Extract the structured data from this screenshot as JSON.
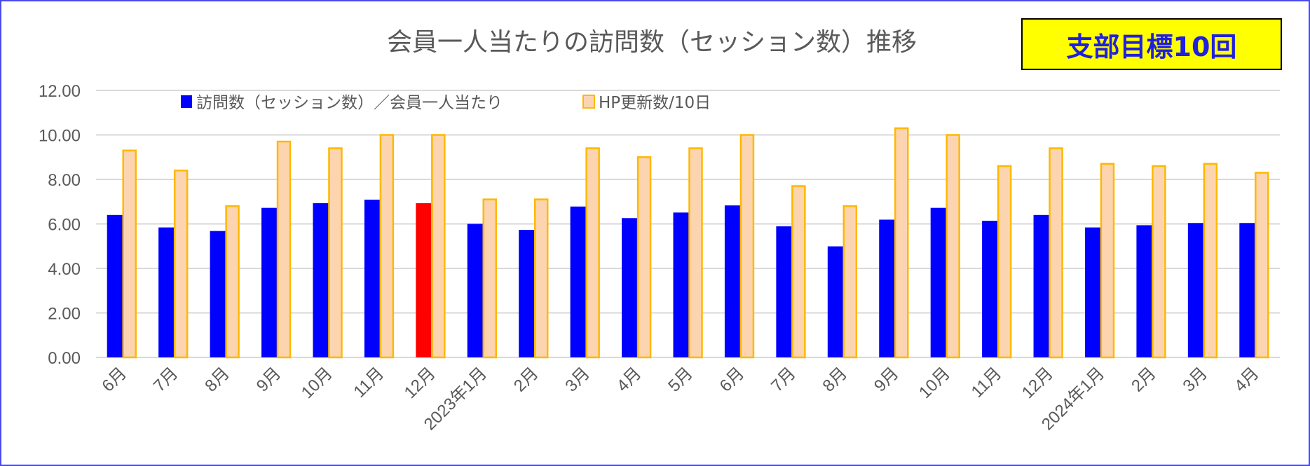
{
  "chart_data": {
    "type": "bar",
    "title": "会員一人当たりの訪問数（セッション数）推移",
    "annotation": "支部目標10回",
    "categories": [
      "6月",
      "7月",
      "8月",
      "9月",
      "10月",
      "11月",
      "12月",
      "2023年1月",
      "2月",
      "3月",
      "4月",
      "5月",
      "6月",
      "7月",
      "8月",
      "9月",
      "10月",
      "11月",
      "12月",
      "2024年1月",
      "2月",
      "3月",
      "4月"
    ],
    "series": [
      {
        "name": "訪問数（セッション数）／会員一人当たり",
        "color": "#0000ff",
        "highlight_index": 6,
        "highlight_color": "#ff0000",
        "values": [
          6.4,
          5.84,
          5.68,
          6.72,
          6.93,
          7.09,
          6.93,
          6.0,
          5.73,
          6.78,
          6.26,
          6.51,
          6.83,
          5.89,
          4.99,
          6.19,
          6.72,
          6.14,
          6.4,
          5.84,
          5.94,
          6.04,
          6.04
        ]
      },
      {
        "name": "HP更新数/10日",
        "color": "#fcd5b0",
        "stroke": "#ffb800",
        "values": [
          9.3,
          8.4,
          6.8,
          9.7,
          9.4,
          10.0,
          10.0,
          7.1,
          7.1,
          9.4,
          9.0,
          9.4,
          10.0,
          7.7,
          6.8,
          10.3,
          10.0,
          8.6,
          9.4,
          8.7,
          8.6,
          8.7,
          8.3
        ]
      }
    ],
    "yticks": [
      "0.00",
      "2.00",
      "4.00",
      "6.00",
      "8.00",
      "10.00",
      "12.00"
    ],
    "ylim": [
      0,
      12
    ],
    "grid": true,
    "legend": "top-left"
  }
}
